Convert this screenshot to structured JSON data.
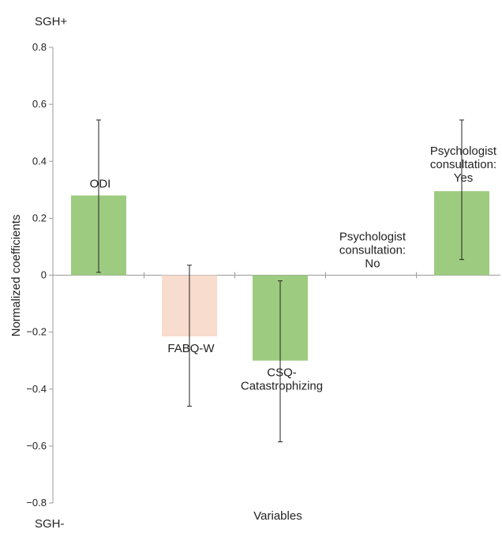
{
  "chart_data": {
    "type": "bar",
    "categories": [
      "ODI",
      "FABQ-W",
      "CSQ-Catastrophizing",
      "Psychologist consultation: No",
      "Psychologist consultation: Yes"
    ],
    "category_label_lines": [
      [
        "ODI"
      ],
      [
        "FABQ-W"
      ],
      [
        "CSQ-",
        "Catastrophizing"
      ],
      [
        "Psychologist",
        "consultation:",
        "No"
      ],
      [
        "Psychologist",
        "consultation:",
        "Yes"
      ]
    ],
    "values": [
      0.28,
      -0.215,
      -0.3,
      0.0,
      0.295
    ],
    "error_low": [
      0.01,
      -0.46,
      -0.585,
      0.0,
      0.055
    ],
    "error_high": [
      0.545,
      0.035,
      -0.02,
      0.0,
      0.545
    ],
    "colors": [
      "#9dcc80",
      "#f8dccd",
      "#9dcc80",
      "#9dcc80",
      "#9dcc80"
    ],
    "ylabel": "Normalized coefficients",
    "xlabel": "Variables",
    "ylim": [
      -0.8,
      0.8
    ],
    "yticks": [
      0.8,
      0.6,
      0.4,
      0.2,
      0,
      -0.2,
      -0.4,
      -0.6,
      -0.8
    ],
    "ytick_labels": [
      "0.8",
      "0.6",
      "0.4",
      "0.2",
      "0",
      "−0.2",
      "−0.4",
      "−0.6",
      "−0.8"
    ],
    "top_corner_label": "SGH+",
    "bottom_corner_label": "SGH-",
    "grid": false,
    "legend": "none"
  }
}
